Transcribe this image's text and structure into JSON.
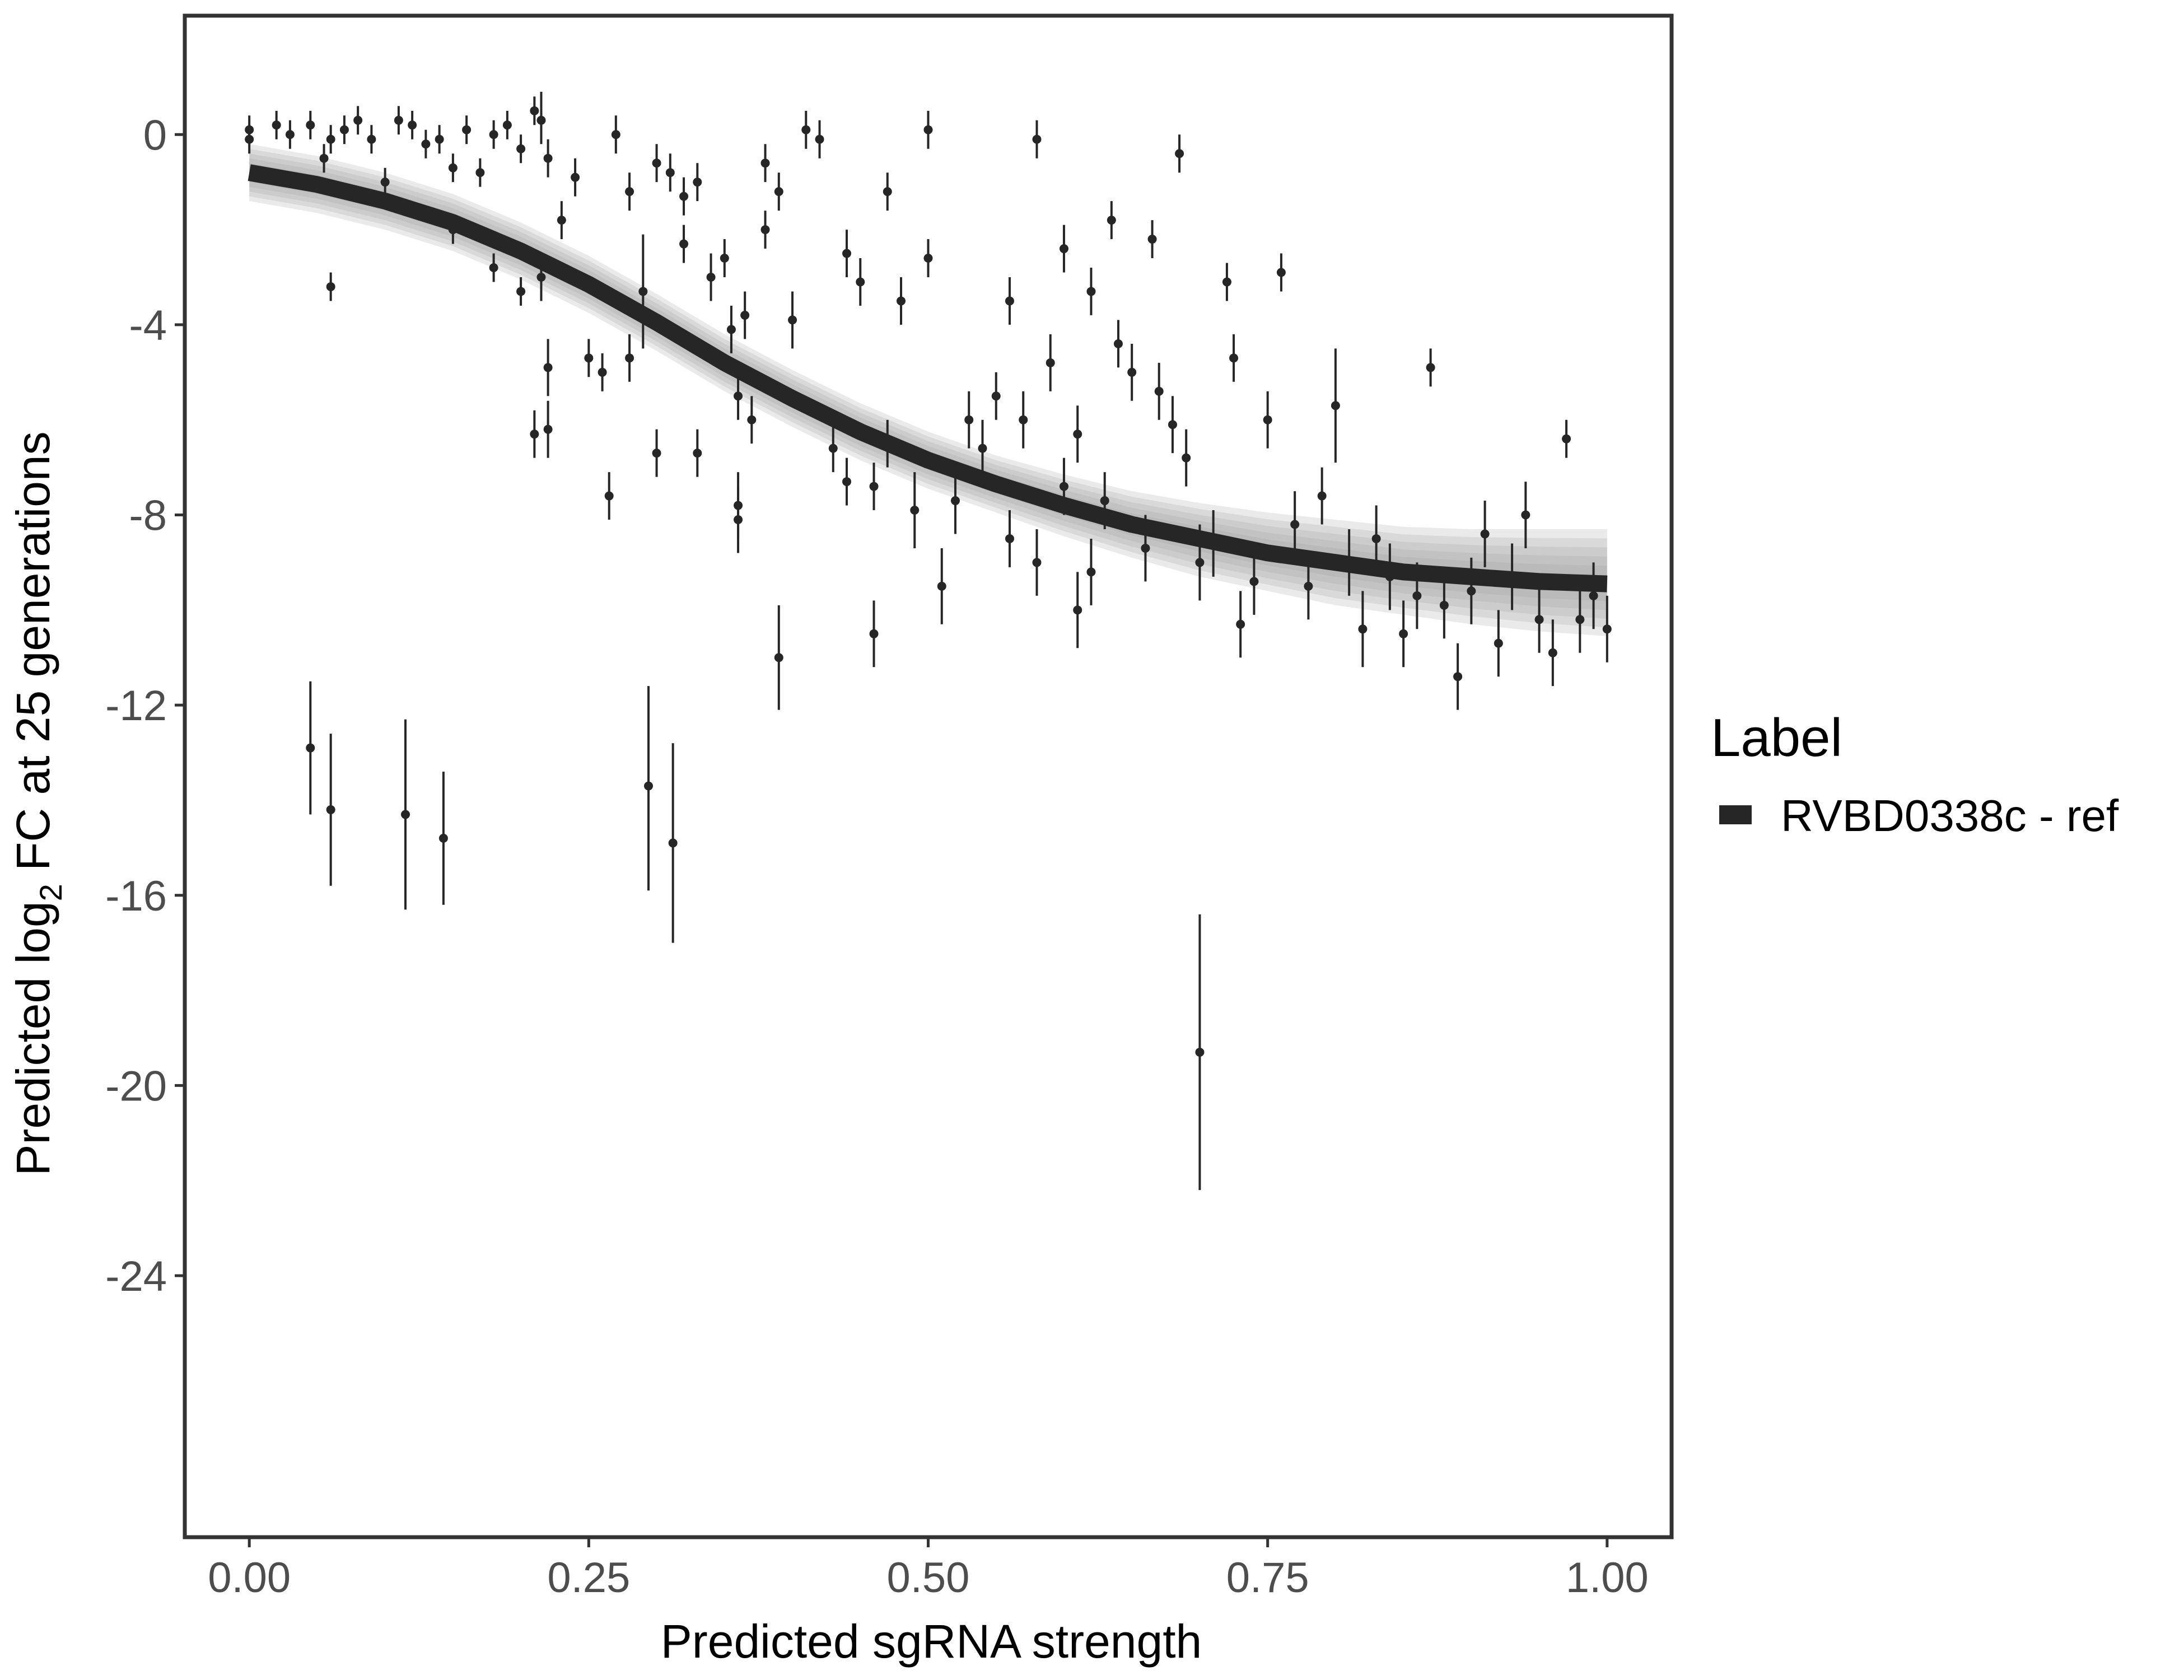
{
  "chart_data": {
    "type": "scatter",
    "xlabel": "Predicted sgRNA strength",
    "ylabel_prefix": "Predicted  log",
    "ylabel_sub": "2",
    "ylabel_suffix": " FC at 25 generations",
    "xlim": [
      -0.0475,
      1.0475
    ],
    "ylim": [
      -29.5,
      2.5
    ],
    "xticks": [
      0.0,
      0.25,
      0.5,
      0.75,
      1.0
    ],
    "xtick_labels": [
      "0.00",
      "0.25",
      "0.50",
      "0.75",
      "1.00"
    ],
    "yticks": [
      0,
      -4,
      -8,
      -12,
      -16,
      -20,
      -24
    ],
    "ytick_labels": [
      "0",
      "-4",
      "-8",
      "-12",
      "-16",
      "-20",
      "-24"
    ],
    "grid": false,
    "legend": {
      "title": "Label",
      "position": "right",
      "entries": [
        {
          "label": "RVBD0338c - ref",
          "color": "#262626"
        }
      ]
    },
    "colors": {
      "points": "#262626",
      "fit": "#262626",
      "band": "#a0a0a0",
      "frame": "#333333"
    },
    "fit_curve": {
      "name": "RVBD0338c - ref",
      "x": [
        0.0,
        0.05,
        0.1,
        0.15,
        0.2,
        0.25,
        0.3,
        0.35,
        0.4,
        0.45,
        0.5,
        0.55,
        0.6,
        0.65,
        0.7,
        0.75,
        0.8,
        0.85,
        0.9,
        0.95,
        1.0
      ],
      "y": [
        -0.8,
        -1.05,
        -1.4,
        -1.85,
        -2.45,
        -3.15,
        -3.95,
        -4.8,
        -5.55,
        -6.25,
        -6.85,
        -7.35,
        -7.8,
        -8.2,
        -8.5,
        -8.8,
        -9.0,
        -9.2,
        -9.3,
        -9.4,
        -9.45
      ],
      "band_lower": [
        -1.4,
        -1.65,
        -2.0,
        -2.45,
        -3.05,
        -3.75,
        -4.55,
        -5.4,
        -6.15,
        -6.85,
        -7.45,
        -7.95,
        -8.45,
        -8.9,
        -9.3,
        -9.6,
        -9.9,
        -10.1,
        -10.3,
        -10.45,
        -10.55
      ],
      "band_upper": [
        -0.2,
        -0.45,
        -0.8,
        -1.25,
        -1.85,
        -2.55,
        -3.35,
        -4.2,
        -4.95,
        -5.65,
        -6.25,
        -6.75,
        -7.15,
        -7.5,
        -7.75,
        -7.95,
        -8.1,
        -8.25,
        -8.3,
        -8.3,
        -8.3
      ]
    },
    "points": [
      {
        "x": 0.0,
        "y": 0.1,
        "lo": -0.2,
        "hi": 0.4
      },
      {
        "x": 0.0,
        "y": -0.1,
        "lo": -0.4,
        "hi": 0.2
      },
      {
        "x": 0.02,
        "y": 0.2,
        "lo": -0.1,
        "hi": 0.5
      },
      {
        "x": 0.03,
        "y": 0.0,
        "lo": -0.3,
        "hi": 0.3
      },
      {
        "x": 0.045,
        "y": 0.2,
        "lo": -0.1,
        "hi": 0.5
      },
      {
        "x": 0.055,
        "y": -0.5,
        "lo": -0.8,
        "hi": -0.2
      },
      {
        "x": 0.06,
        "y": -3.2,
        "lo": -3.5,
        "hi": -2.9
      },
      {
        "x": 0.06,
        "y": -0.1,
        "lo": -0.4,
        "hi": 0.2
      },
      {
        "x": 0.07,
        "y": 0.1,
        "lo": -0.2,
        "hi": 0.4
      },
      {
        "x": 0.08,
        "y": 0.3,
        "lo": 0.0,
        "hi": 0.6
      },
      {
        "x": 0.09,
        "y": -0.1,
        "lo": -0.4,
        "hi": 0.2
      },
      {
        "x": 0.1,
        "y": -1.0,
        "lo": -1.3,
        "hi": -0.7
      },
      {
        "x": 0.11,
        "y": 0.3,
        "lo": 0.0,
        "hi": 0.6
      },
      {
        "x": 0.12,
        "y": 0.2,
        "lo": -0.1,
        "hi": 0.5
      },
      {
        "x": 0.13,
        "y": -0.2,
        "lo": -0.5,
        "hi": 0.1
      },
      {
        "x": 0.14,
        "y": -0.1,
        "lo": -0.4,
        "hi": 0.2
      },
      {
        "x": 0.15,
        "y": -0.7,
        "lo": -1.0,
        "hi": -0.4
      },
      {
        "x": 0.15,
        "y": -2.0,
        "lo": -2.3,
        "hi": -1.7
      },
      {
        "x": 0.16,
        "y": 0.1,
        "lo": -0.2,
        "hi": 0.4
      },
      {
        "x": 0.17,
        "y": -0.8,
        "lo": -1.1,
        "hi": -0.5
      },
      {
        "x": 0.18,
        "y": 0.0,
        "lo": -0.3,
        "hi": 0.3
      },
      {
        "x": 0.18,
        "y": -2.8,
        "lo": -3.1,
        "hi": -2.5
      },
      {
        "x": 0.19,
        "y": 0.2,
        "lo": -0.1,
        "hi": 0.5
      },
      {
        "x": 0.2,
        "y": -0.3,
        "lo": -0.6,
        "hi": 0.0
      },
      {
        "x": 0.2,
        "y": -3.3,
        "lo": -3.6,
        "hi": -3.0
      },
      {
        "x": 0.21,
        "y": 0.5,
        "lo": 0.2,
        "hi": 0.8
      },
      {
        "x": 0.21,
        "y": -6.3,
        "lo": -6.8,
        "hi": -5.8
      },
      {
        "x": 0.215,
        "y": 0.3,
        "lo": -0.2,
        "hi": 0.9
      },
      {
        "x": 0.215,
        "y": -3.0,
        "lo": -3.5,
        "hi": -2.5
      },
      {
        "x": 0.22,
        "y": -0.5,
        "lo": -0.9,
        "hi": -0.1
      },
      {
        "x": 0.22,
        "y": -4.9,
        "lo": -5.5,
        "hi": -4.3
      },
      {
        "x": 0.22,
        "y": -6.2,
        "lo": -6.8,
        "hi": -5.6
      },
      {
        "x": 0.23,
        "y": -1.8,
        "lo": -2.2,
        "hi": -1.4
      },
      {
        "x": 0.24,
        "y": -0.9,
        "lo": -1.3,
        "hi": -0.5
      },
      {
        "x": 0.25,
        "y": -4.7,
        "lo": -5.1,
        "hi": -4.3
      },
      {
        "x": 0.26,
        "y": -5.0,
        "lo": -5.4,
        "hi": -4.6
      },
      {
        "x": 0.265,
        "y": -7.6,
        "lo": -8.1,
        "hi": -7.1
      },
      {
        "x": 0.27,
        "y": 0.0,
        "lo": -0.4,
        "hi": 0.4
      },
      {
        "x": 0.28,
        "y": -1.2,
        "lo": -1.6,
        "hi": -0.8
      },
      {
        "x": 0.28,
        "y": -4.7,
        "lo": -5.2,
        "hi": -4.2
      },
      {
        "x": 0.29,
        "y": -3.3,
        "lo": -4.5,
        "hi": -2.1
      },
      {
        "x": 0.3,
        "y": -0.6,
        "lo": -1.0,
        "hi": -0.2
      },
      {
        "x": 0.3,
        "y": -6.7,
        "lo": -7.2,
        "hi": -6.2
      },
      {
        "x": 0.31,
        "y": -0.8,
        "lo": -1.2,
        "hi": -0.4
      },
      {
        "x": 0.32,
        "y": -1.3,
        "lo": -1.7,
        "hi": -0.9
      },
      {
        "x": 0.32,
        "y": -2.3,
        "lo": -2.7,
        "hi": -1.9
      },
      {
        "x": 0.33,
        "y": -1.0,
        "lo": -1.4,
        "hi": -0.6
      },
      {
        "x": 0.33,
        "y": -6.7,
        "lo": -7.2,
        "hi": -6.2
      },
      {
        "x": 0.34,
        "y": -3.0,
        "lo": -3.5,
        "hi": -2.5
      },
      {
        "x": 0.35,
        "y": -2.6,
        "lo": -3.0,
        "hi": -2.2
      },
      {
        "x": 0.355,
        "y": -4.1,
        "lo": -4.6,
        "hi": -3.6
      },
      {
        "x": 0.36,
        "y": -5.5,
        "lo": -6.0,
        "hi": -5.0
      },
      {
        "x": 0.36,
        "y": -7.8,
        "lo": -8.5,
        "hi": -7.1
      },
      {
        "x": 0.36,
        "y": -8.1,
        "lo": -8.8,
        "hi": -7.4
      },
      {
        "x": 0.365,
        "y": -3.8,
        "lo": -4.3,
        "hi": -3.3
      },
      {
        "x": 0.37,
        "y": -6.0,
        "lo": -6.5,
        "hi": -5.5
      },
      {
        "x": 0.38,
        "y": -0.6,
        "lo": -1.0,
        "hi": -0.2
      },
      {
        "x": 0.38,
        "y": -2.0,
        "lo": -2.4,
        "hi": -1.6
      },
      {
        "x": 0.39,
        "y": -1.2,
        "lo": -1.6,
        "hi": -0.8
      },
      {
        "x": 0.39,
        "y": -11.0,
        "lo": -12.1,
        "hi": -9.9
      },
      {
        "x": 0.4,
        "y": -3.9,
        "lo": -4.5,
        "hi": -3.3
      },
      {
        "x": 0.41,
        "y": 0.1,
        "lo": -0.3,
        "hi": 0.5
      },
      {
        "x": 0.42,
        "y": -0.1,
        "lo": -0.5,
        "hi": 0.3
      },
      {
        "x": 0.43,
        "y": -6.6,
        "lo": -7.1,
        "hi": -6.1
      },
      {
        "x": 0.44,
        "y": -7.3,
        "lo": -7.8,
        "hi": -6.8
      },
      {
        "x": 0.44,
        "y": -2.5,
        "lo": -3.0,
        "hi": -2.0
      },
      {
        "x": 0.45,
        "y": -3.1,
        "lo": -3.6,
        "hi": -2.6
      },
      {
        "x": 0.46,
        "y": -10.5,
        "lo": -11.2,
        "hi": -9.8
      },
      {
        "x": 0.46,
        "y": -7.4,
        "lo": -7.9,
        "hi": -6.9
      },
      {
        "x": 0.47,
        "y": -1.2,
        "lo": -1.6,
        "hi": -0.8
      },
      {
        "x": 0.47,
        "y": -6.5,
        "lo": -7.0,
        "hi": -6.0
      },
      {
        "x": 0.48,
        "y": -3.5,
        "lo": -4.0,
        "hi": -3.0
      },
      {
        "x": 0.49,
        "y": -7.9,
        "lo": -8.7,
        "hi": -7.1
      },
      {
        "x": 0.5,
        "y": 0.1,
        "lo": -0.3,
        "hi": 0.5
      },
      {
        "x": 0.5,
        "y": -2.6,
        "lo": -3.0,
        "hi": -2.2
      },
      {
        "x": 0.51,
        "y": -9.5,
        "lo": -10.3,
        "hi": -8.7
      },
      {
        "x": 0.52,
        "y": -7.7,
        "lo": -8.4,
        "hi": -7.0
      },
      {
        "x": 0.53,
        "y": -6.0,
        "lo": -6.6,
        "hi": -5.4
      },
      {
        "x": 0.54,
        "y": -6.6,
        "lo": -7.2,
        "hi": -6.0
      },
      {
        "x": 0.55,
        "y": -5.5,
        "lo": -6.0,
        "hi": -5.0
      },
      {
        "x": 0.56,
        "y": -3.5,
        "lo": -4.0,
        "hi": -3.0
      },
      {
        "x": 0.56,
        "y": -8.5,
        "lo": -9.1,
        "hi": -7.9
      },
      {
        "x": 0.57,
        "y": -6.0,
        "lo": -6.6,
        "hi": -5.4
      },
      {
        "x": 0.58,
        "y": -9.0,
        "lo": -9.7,
        "hi": -8.3
      },
      {
        "x": 0.58,
        "y": -0.1,
        "lo": -0.5,
        "hi": 0.3
      },
      {
        "x": 0.59,
        "y": -4.8,
        "lo": -5.4,
        "hi": -4.2
      },
      {
        "x": 0.6,
        "y": -2.4,
        "lo": -2.9,
        "hi": -1.9
      },
      {
        "x": 0.6,
        "y": -7.4,
        "lo": -8.0,
        "hi": -6.8
      },
      {
        "x": 0.61,
        "y": -10.0,
        "lo": -10.8,
        "hi": -9.2
      },
      {
        "x": 0.61,
        "y": -6.3,
        "lo": -6.9,
        "hi": -5.7
      },
      {
        "x": 0.62,
        "y": -3.3,
        "lo": -3.8,
        "hi": -2.8
      },
      {
        "x": 0.62,
        "y": -9.2,
        "lo": -9.9,
        "hi": -8.5
      },
      {
        "x": 0.63,
        "y": -7.7,
        "lo": -8.3,
        "hi": -7.1
      },
      {
        "x": 0.635,
        "y": -1.8,
        "lo": -2.2,
        "hi": -1.4
      },
      {
        "x": 0.64,
        "y": -4.4,
        "lo": -4.9,
        "hi": -3.9
      },
      {
        "x": 0.65,
        "y": -5.0,
        "lo": -5.6,
        "hi": -4.4
      },
      {
        "x": 0.66,
        "y": -8.7,
        "lo": -9.4,
        "hi": -8.0
      },
      {
        "x": 0.665,
        "y": -2.2,
        "lo": -2.6,
        "hi": -1.8
      },
      {
        "x": 0.67,
        "y": -5.4,
        "lo": -6.0,
        "hi": -4.8
      },
      {
        "x": 0.68,
        "y": -6.1,
        "lo": -6.7,
        "hi": -5.5
      },
      {
        "x": 0.685,
        "y": -0.4,
        "lo": -0.8,
        "hi": 0.0
      },
      {
        "x": 0.69,
        "y": -6.8,
        "lo": -7.4,
        "hi": -6.2
      },
      {
        "x": 0.7,
        "y": -19.3,
        "lo": -22.2,
        "hi": -16.4
      },
      {
        "x": 0.7,
        "y": -9.0,
        "lo": -9.8,
        "hi": -8.2
      },
      {
        "x": 0.71,
        "y": -8.6,
        "lo": -9.3,
        "hi": -7.9
      },
      {
        "x": 0.72,
        "y": -3.1,
        "lo": -3.5,
        "hi": -2.7
      },
      {
        "x": 0.725,
        "y": -4.7,
        "lo": -5.2,
        "hi": -4.2
      },
      {
        "x": 0.73,
        "y": -10.3,
        "lo": -11.0,
        "hi": -9.6
      },
      {
        "x": 0.74,
        "y": -9.4,
        "lo": -10.1,
        "hi": -8.7
      },
      {
        "x": 0.75,
        "y": -6.0,
        "lo": -6.6,
        "hi": -5.4
      },
      {
        "x": 0.76,
        "y": -2.9,
        "lo": -3.3,
        "hi": -2.5
      },
      {
        "x": 0.77,
        "y": -8.2,
        "lo": -8.9,
        "hi": -7.5
      },
      {
        "x": 0.78,
        "y": -9.5,
        "lo": -10.2,
        "hi": -8.8
      },
      {
        "x": 0.79,
        "y": -7.6,
        "lo": -8.2,
        "hi": -7.0
      },
      {
        "x": 0.8,
        "y": -5.7,
        "lo": -6.9,
        "hi": -4.5
      },
      {
        "x": 0.81,
        "y": -9.0,
        "lo": -9.7,
        "hi": -8.3
      },
      {
        "x": 0.82,
        "y": -10.4,
        "lo": -11.2,
        "hi": -9.6
      },
      {
        "x": 0.83,
        "y": -8.5,
        "lo": -9.2,
        "hi": -7.8
      },
      {
        "x": 0.84,
        "y": -9.3,
        "lo": -10.0,
        "hi": -8.6
      },
      {
        "x": 0.85,
        "y": -10.5,
        "lo": -11.2,
        "hi": -9.8
      },
      {
        "x": 0.86,
        "y": -9.7,
        "lo": -10.4,
        "hi": -9.0
      },
      {
        "x": 0.87,
        "y": -4.9,
        "lo": -5.3,
        "hi": -4.5
      },
      {
        "x": 0.88,
        "y": -9.9,
        "lo": -10.6,
        "hi": -9.2
      },
      {
        "x": 0.89,
        "y": -11.4,
        "lo": -12.1,
        "hi": -10.7
      },
      {
        "x": 0.9,
        "y": -9.6,
        "lo": -10.3,
        "hi": -8.9
      },
      {
        "x": 0.91,
        "y": -8.4,
        "lo": -9.1,
        "hi": -7.7
      },
      {
        "x": 0.92,
        "y": -10.7,
        "lo": -11.4,
        "hi": -10.0
      },
      {
        "x": 0.93,
        "y": -9.3,
        "lo": -10.0,
        "hi": -8.6
      },
      {
        "x": 0.94,
        "y": -8.0,
        "lo": -8.7,
        "hi": -7.3
      },
      {
        "x": 0.95,
        "y": -10.2,
        "lo": -10.9,
        "hi": -9.5
      },
      {
        "x": 0.96,
        "y": -10.9,
        "lo": -11.6,
        "hi": -10.2
      },
      {
        "x": 0.97,
        "y": -6.4,
        "lo": -6.8,
        "hi": -6.0
      },
      {
        "x": 0.98,
        "y": -10.2,
        "lo": -10.9,
        "hi": -9.5
      },
      {
        "x": 0.99,
        "y": -9.7,
        "lo": -10.4,
        "hi": -9.0
      },
      {
        "x": 1.0,
        "y": -10.4,
        "lo": -11.1,
        "hi": -9.7
      },
      {
        "x": 0.045,
        "y": -12.9,
        "lo": -14.3,
        "hi": -11.5
      },
      {
        "x": 0.06,
        "y": -14.2,
        "lo": -15.8,
        "hi": -12.6
      },
      {
        "x": 0.115,
        "y": -14.3,
        "lo": -16.3,
        "hi": -12.3
      },
      {
        "x": 0.143,
        "y": -14.8,
        "lo": -16.2,
        "hi": -13.4
      },
      {
        "x": 0.294,
        "y": -13.7,
        "lo": -15.9,
        "hi": -11.6
      },
      {
        "x": 0.312,
        "y": -14.9,
        "lo": -17.0,
        "hi": -12.8
      }
    ]
  }
}
